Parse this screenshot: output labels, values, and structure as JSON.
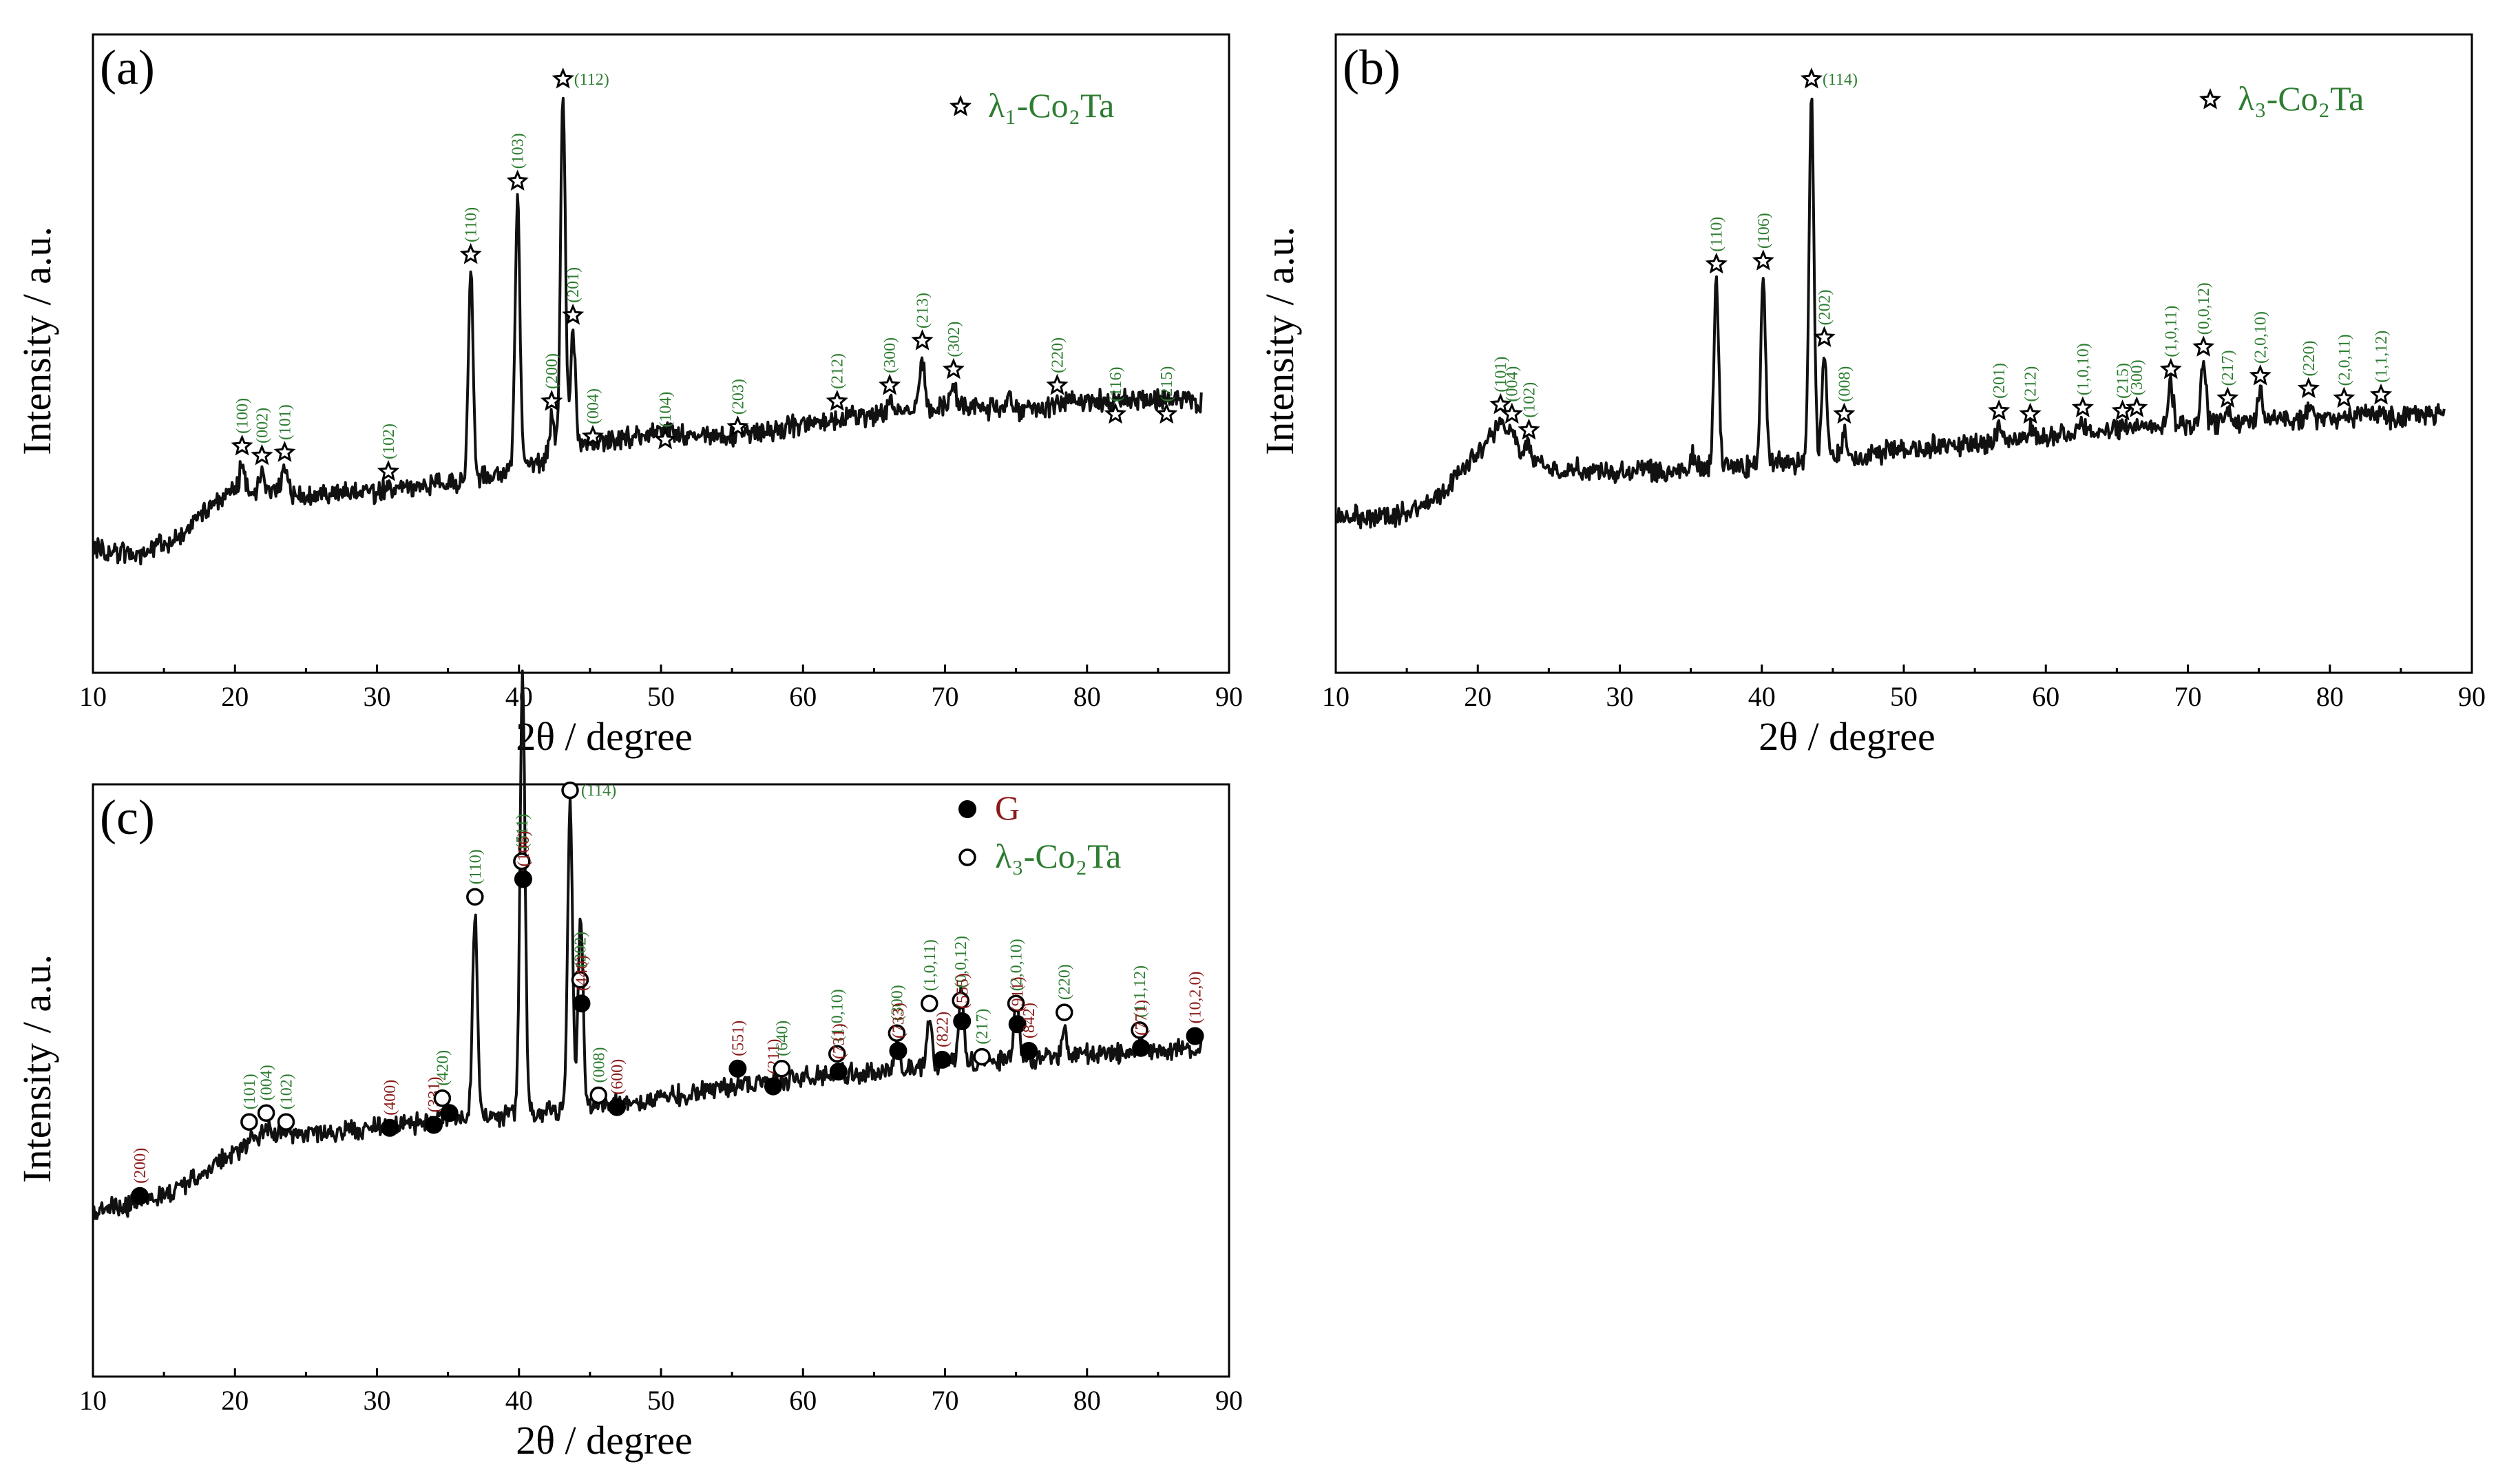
{
  "colors": {
    "lambda": "#2e7d32",
    "g": "#8b1a1a",
    "trace": "#111111"
  },
  "chart_data": [
    {
      "panel": "(a)",
      "type": "line",
      "xlabel": "2θ / degree",
      "ylabel": "Intensity / a.u.",
      "xlim": [
        10,
        90
      ],
      "ylim": [
        0,
        100
      ],
      "xticks": [
        10,
        20,
        30,
        40,
        50,
        60,
        70,
        80,
        90
      ],
      "legend": [
        {
          "marker": "star",
          "text": "λ₁-Co₂Ta",
          "color": "#2e7d32",
          "position": "top-right"
        }
      ],
      "baseline": [
        [
          10,
          19.5
        ],
        [
          13,
          18.5
        ],
        [
          16,
          21
        ],
        [
          18,
          25.5
        ],
        [
          20,
          29
        ],
        [
          25,
          28
        ],
        [
          30,
          28.3
        ],
        [
          36,
          30
        ],
        [
          40,
          32
        ],
        [
          45,
          36
        ],
        [
          50,
          37.5
        ],
        [
          55,
          37
        ],
        [
          60,
          39
        ],
        [
          65,
          40.5
        ],
        [
          70,
          41.5
        ],
        [
          75,
          41.3
        ],
        [
          80,
          42.5
        ],
        [
          85,
          43
        ],
        [
          88,
          42.5
        ]
      ],
      "peaks": [
        {
          "x": 20.5,
          "y": 35.5,
          "hkl": "(100)",
          "marker": "star"
        },
        {
          "x": 21.9,
          "y": 34,
          "hkl": "(002)",
          "marker": "star"
        },
        {
          "x": 23.5,
          "y": 34.5,
          "hkl": "(101)",
          "marker": "star"
        },
        {
          "x": 30.8,
          "y": 31.5,
          "hkl": "(102)",
          "marker": "star"
        },
        {
          "x": 36.6,
          "y": 65.5,
          "hkl": "(110)",
          "marker": "star"
        },
        {
          "x": 39.9,
          "y": 77,
          "hkl": "(103)",
          "marker": "star"
        },
        {
          "x": 42.3,
          "y": 42.5,
          "hkl": "(200)",
          "marker": "star"
        },
        {
          "x": 43.1,
          "y": 93,
          "hkl": "(112)",
          "marker": "star"
        },
        {
          "x": 43.8,
          "y": 56,
          "hkl": "(201)",
          "marker": "star"
        },
        {
          "x": 45.2,
          "y": 37,
          "hkl": "(004)",
          "marker": "star"
        },
        {
          "x": 50.3,
          "y": 36.5,
          "hkl": "(104)",
          "marker": "star"
        },
        {
          "x": 55.4,
          "y": 38.5,
          "hkl": "(203)",
          "marker": "star"
        },
        {
          "x": 62.4,
          "y": 42.5,
          "hkl": "(212)",
          "marker": "star"
        },
        {
          "x": 66.1,
          "y": 45,
          "hkl": "(300)",
          "marker": "star"
        },
        {
          "x": 68.4,
          "y": 52,
          "hkl": "(213)",
          "marker": "star"
        },
        {
          "x": 70.6,
          "y": 47.5,
          "hkl": "(302)",
          "marker": "star"
        },
        {
          "x": 74.6,
          "y": 45.5,
          "hkl": "",
          "marker": "none"
        },
        {
          "x": 77.9,
          "y": 45,
          "hkl": "(220)",
          "marker": "star"
        },
        {
          "x": 82.0,
          "y": 40.5,
          "hkl": "(116)",
          "marker": "star"
        },
        {
          "x": 85.6,
          "y": 40.5,
          "hkl": "(215)",
          "marker": "star"
        }
      ]
    },
    {
      "panel": "(b)",
      "type": "line",
      "xlabel": "2θ / degree",
      "ylabel": "Intensity / a.u.",
      "xlim": [
        10,
        90
      ],
      "ylim": [
        0,
        100
      ],
      "xticks": [
        10,
        20,
        30,
        40,
        50,
        60,
        70,
        80,
        90
      ],
      "legend": [
        {
          "marker": "star",
          "text": "λ₃-Co₂Ta",
          "color": "#2e7d32",
          "position": "top-right"
        }
      ],
      "baseline": [
        [
          10,
          24.5
        ],
        [
          14,
          24.5
        ],
        [
          17,
          27
        ],
        [
          19,
          32
        ],
        [
          21,
          37.5
        ],
        [
          23,
          35
        ],
        [
          25,
          32
        ],
        [
          30,
          31.5
        ],
        [
          35,
          31.8
        ],
        [
          40,
          32.5
        ],
        [
          45,
          33.5
        ],
        [
          50,
          35
        ],
        [
          55,
          36
        ],
        [
          60,
          37
        ],
        [
          65,
          38
        ],
        [
          70,
          39
        ],
        [
          75,
          39.5
        ],
        [
          80,
          40
        ],
        [
          85,
          40
        ],
        [
          88,
          40.5
        ]
      ],
      "peaks": [
        {
          "x": 21.6,
          "y": 42,
          "hkl": "(101)",
          "marker": "star"
        },
        {
          "x": 22.4,
          "y": 40.5,
          "hkl": "(004)",
          "marker": "star"
        },
        {
          "x": 23.6,
          "y": 38,
          "hkl": "(102)",
          "marker": "star"
        },
        {
          "x": 35.2,
          "y": 37,
          "hkl": "",
          "marker": "none"
        },
        {
          "x": 36.8,
          "y": 64,
          "hkl": "(110)",
          "marker": "star"
        },
        {
          "x": 40.1,
          "y": 64.5,
          "hkl": "(106)",
          "marker": "star"
        },
        {
          "x": 43.5,
          "y": 93,
          "hkl": "(114)",
          "marker": "star"
        },
        {
          "x": 44.4,
          "y": 52.5,
          "hkl": "(202)",
          "marker": "star"
        },
        {
          "x": 45.8,
          "y": 40.5,
          "hkl": "(008)",
          "marker": "star"
        },
        {
          "x": 56.7,
          "y": 41,
          "hkl": "(201)",
          "marker": "star"
        },
        {
          "x": 58.9,
          "y": 40.5,
          "hkl": "(212)",
          "marker": "star"
        },
        {
          "x": 62.6,
          "y": 41.5,
          "hkl": "(1,0,10)",
          "marker": "star"
        },
        {
          "x": 65.4,
          "y": 41,
          "hkl": "(215)",
          "marker": "star"
        },
        {
          "x": 66.4,
          "y": 41.5,
          "hkl": "(300)",
          "marker": "star"
        },
        {
          "x": 68.8,
          "y": 47.5,
          "hkl": "(1,0,11)",
          "marker": "star"
        },
        {
          "x": 71.1,
          "y": 51,
          "hkl": "(0,0,12)",
          "marker": "star"
        },
        {
          "x": 72.8,
          "y": 43,
          "hkl": "(217)",
          "marker": "star"
        },
        {
          "x": 75.1,
          "y": 46.5,
          "hkl": "(2,0,10)",
          "marker": "star"
        },
        {
          "x": 78.5,
          "y": 44.5,
          "hkl": "(220)",
          "marker": "star"
        },
        {
          "x": 81.0,
          "y": 43,
          "hkl": "(2,0,11)",
          "marker": "star"
        },
        {
          "x": 83.6,
          "y": 43.5,
          "hkl": "(1,1,12)",
          "marker": "star"
        }
      ]
    },
    {
      "panel": "(c)",
      "type": "line",
      "xlabel": "2θ / degree",
      "ylabel": "Intensity / a.u.",
      "xlim": [
        10,
        90
      ],
      "ylim": [
        0,
        100
      ],
      "xticks": [
        10,
        20,
        30,
        40,
        50,
        60,
        70,
        80,
        90
      ],
      "legend": [
        {
          "marker": "filled-circle",
          "text": "G",
          "color": "#8b1a1a",
          "position": "top-right"
        },
        {
          "marker": "open-circle",
          "text": "λ₃-Co₂Ta",
          "color": "#2e7d32",
          "position": "top-right"
        }
      ],
      "baseline": [
        [
          10,
          28
        ],
        [
          13,
          29
        ],
        [
          16,
          31.5
        ],
        [
          18,
          35
        ],
        [
          20,
          38
        ],
        [
          22,
          41
        ],
        [
          25,
          41
        ],
        [
          30,
          42
        ],
        [
          35,
          43.5
        ],
        [
          40,
          44
        ],
        [
          45,
          45.5
        ],
        [
          50,
          47
        ],
        [
          55,
          49
        ],
        [
          60,
          50.5
        ],
        [
          65,
          51.5
        ],
        [
          70,
          53
        ],
        [
          75,
          53.5
        ],
        [
          80,
          54.5
        ],
        [
          85,
          55
        ],
        [
          88,
          55.5
        ]
      ],
      "peaks": [
        {
          "x": 13.3,
          "y": 30.5,
          "hkl": "(200)",
          "marker": "filled"
        },
        {
          "x": 21.0,
          "y": 43,
          "hkl": "(101)",
          "marker": "open"
        },
        {
          "x": 22.2,
          "y": 44.5,
          "hkl": "(004)",
          "marker": "open"
        },
        {
          "x": 23.6,
          "y": 43,
          "hkl": "(102)",
          "marker": "open"
        },
        {
          "x": 30.9,
          "y": 42,
          "hkl": "(400)",
          "marker": "filled"
        },
        {
          "x": 34.0,
          "y": 42.5,
          "hkl": "(331)",
          "marker": "filled"
        },
        {
          "x": 34.6,
          "y": 47,
          "hkl": "(420)",
          "marker": "open"
        },
        {
          "x": 35.1,
          "y": 44.5,
          "hkl": "",
          "marker": "filled"
        },
        {
          "x": 36.9,
          "y": 81,
          "hkl": "(110)",
          "marker": "open"
        },
        {
          "x": 40.2,
          "y": 87,
          "hkl": "(511)",
          "marker": "open"
        },
        {
          "x": 40.3,
          "y": 84,
          "hkl": "(106)",
          "marker": "filled"
        },
        {
          "x": 43.6,
          "y": 99,
          "hkl": "(114)",
          "marker": "open"
        },
        {
          "x": 44.3,
          "y": 67,
          "hkl": "(202)",
          "marker": "open"
        },
        {
          "x": 44.4,
          "y": 63,
          "hkl": "(440)",
          "marker": "filled"
        },
        {
          "x": 45.6,
          "y": 47.5,
          "hkl": "(008)",
          "marker": "open"
        },
        {
          "x": 46.9,
          "y": 45.5,
          "hkl": "(600)",
          "marker": "filled"
        },
        {
          "x": 55.4,
          "y": 52,
          "hkl": "(551)",
          "marker": "filled"
        },
        {
          "x": 57.9,
          "y": 49,
          "hkl": "(211)",
          "marker": "filled"
        },
        {
          "x": 58.5,
          "y": 52,
          "hkl": "(640)",
          "marker": "open"
        },
        {
          "x": 62.4,
          "y": 54.5,
          "hkl": "(1,0,10)",
          "marker": "open"
        },
        {
          "x": 62.5,
          "y": 51.5,
          "hkl": "(731)",
          "marker": "filled"
        },
        {
          "x": 66.6,
          "y": 58,
          "hkl": "(300)",
          "marker": "open"
        },
        {
          "x": 66.7,
          "y": 55,
          "hkl": "(733)",
          "marker": "filled"
        },
        {
          "x": 68.9,
          "y": 63,
          "hkl": "(1,0,11)",
          "marker": "open"
        },
        {
          "x": 69.8,
          "y": 53.5,
          "hkl": "(822)",
          "marker": "filled"
        },
        {
          "x": 71.1,
          "y": 63.5,
          "hkl": "(0,0,12)",
          "marker": "open"
        },
        {
          "x": 71.2,
          "y": 60,
          "hkl": "(555)",
          "marker": "filled"
        },
        {
          "x": 72.6,
          "y": 54,
          "hkl": "(217)",
          "marker": "open"
        },
        {
          "x": 75.0,
          "y": 63,
          "hkl": "(2,0,10)",
          "marker": "open"
        },
        {
          "x": 75.1,
          "y": 59.5,
          "hkl": "(911)",
          "marker": "filled"
        },
        {
          "x": 75.9,
          "y": 55,
          "hkl": "(842)",
          "marker": "filled"
        },
        {
          "x": 78.4,
          "y": 61.5,
          "hkl": "(220)",
          "marker": "open"
        },
        {
          "x": 83.7,
          "y": 58.5,
          "hkl": "(1,1,12)",
          "marker": "open"
        },
        {
          "x": 83.8,
          "y": 55.5,
          "hkl": "(771)",
          "marker": "filled"
        },
        {
          "x": 87.6,
          "y": 57.5,
          "hkl": "(10,2,0)",
          "marker": "filled"
        }
      ]
    }
  ]
}
